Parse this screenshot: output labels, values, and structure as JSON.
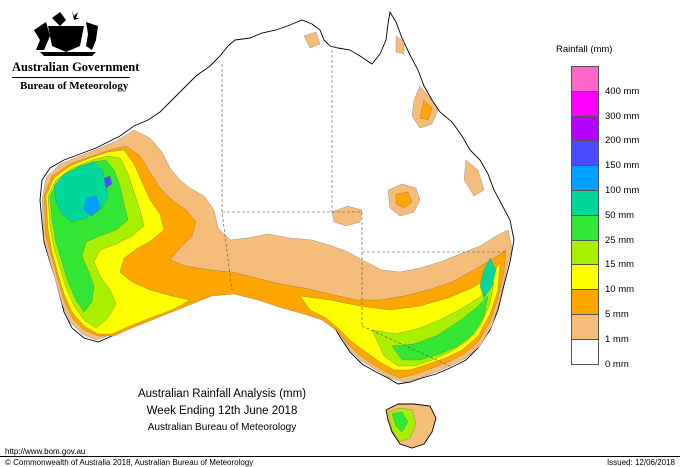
{
  "header": {
    "government": "Australian Government",
    "agency": "Bureau of Meteorology"
  },
  "legend": {
    "title": "Rainfall (mm)",
    "items": [
      {
        "label": "",
        "color": "#ff66cc"
      },
      {
        "label": "400 mm",
        "color": "#ff00ff"
      },
      {
        "label": "300 mm",
        "color": "#b300ff"
      },
      {
        "label": "200 mm",
        "color": "#4b4bff"
      },
      {
        "label": "150 mm",
        "color": "#00a0ff"
      },
      {
        "label": "100 mm",
        "color": "#00d89b"
      },
      {
        "label": "50 mm",
        "color": "#33e633"
      },
      {
        "label": "25 mm",
        "color": "#a8f000"
      },
      {
        "label": "15 mm",
        "color": "#ffff00"
      },
      {
        "label": "10 mm",
        "color": "#ffa500"
      },
      {
        "label": "5 mm",
        "color": "#f5bd7a"
      },
      {
        "label": "1 mm",
        "color": "#ffffff"
      },
      {
        "label": "0 mm",
        "color": ""
      }
    ]
  },
  "caption": {
    "line1": "Australian Rainfall Analysis (mm)",
    "line2": "Week Ending 12th June 2018",
    "line3": "Australian Bureau of Meteorology"
  },
  "footer": {
    "url": "http://www.bom.gov.au",
    "copyright": "© Commonwealth of Australia 2018, Australian Bureau of Meteorology",
    "issued": "Issued: 12/06/2018"
  },
  "map_colors": {
    "r1": "#f5bd7a",
    "r5": "#ffa500",
    "r10": "#ffff00",
    "r15": "#a8f000",
    "r25": "#33e633",
    "r50": "#00d89b",
    "r100": "#00a0ff",
    "r150": "#4b4bff"
  }
}
